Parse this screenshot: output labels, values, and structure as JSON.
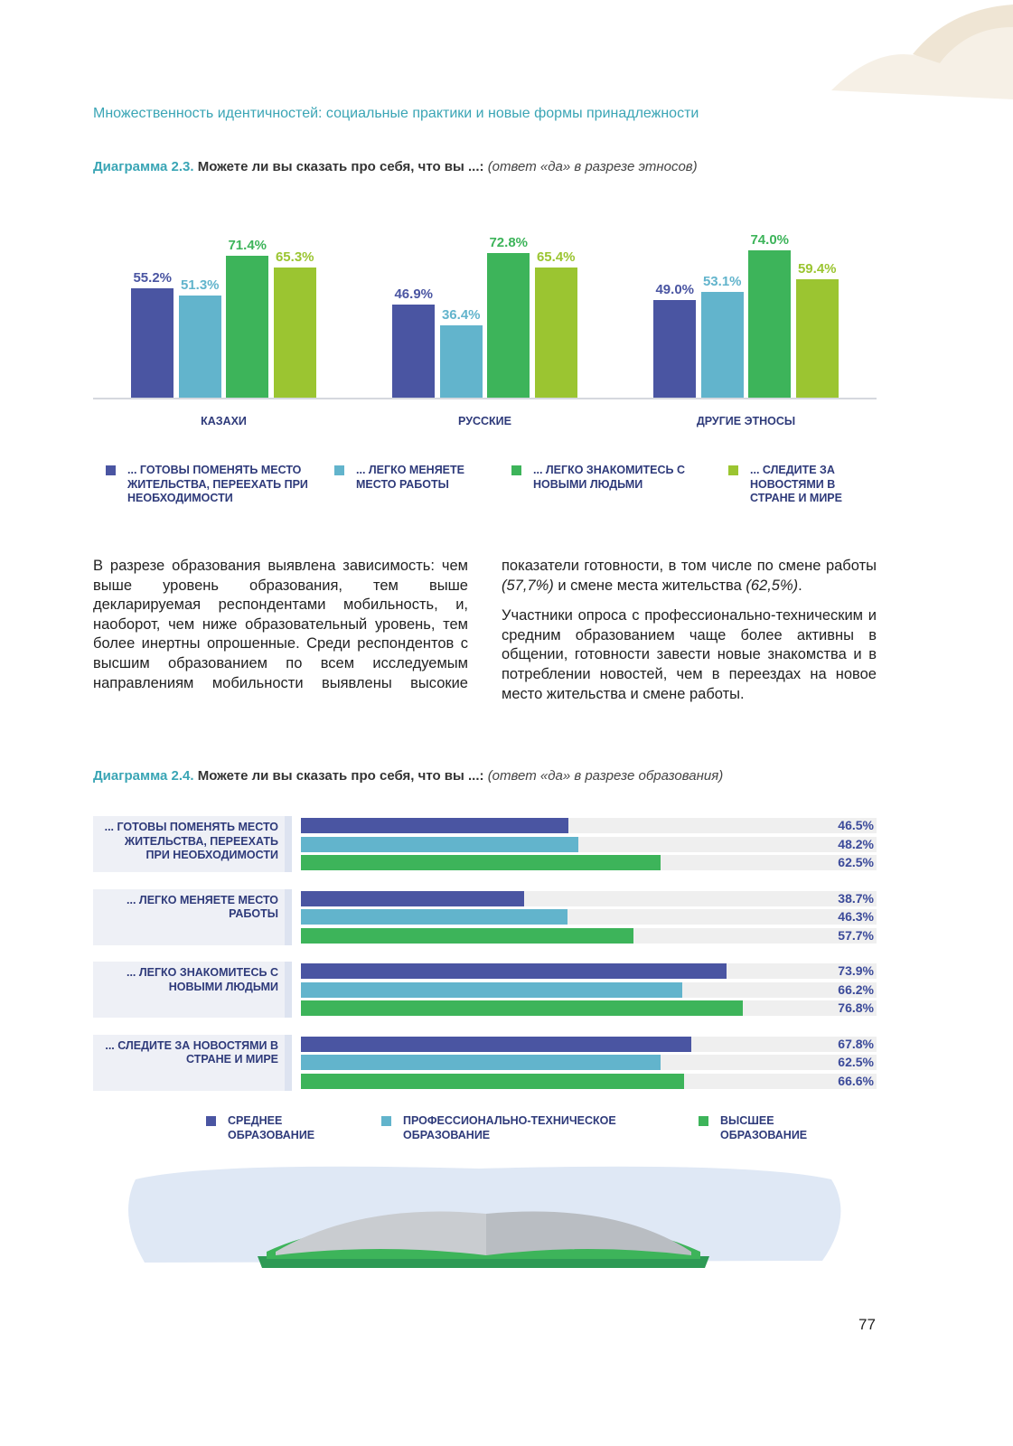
{
  "header": "Множественность идентичностей: социальные практики и новые формы принадлежности",
  "chart_data": [
    {
      "type": "bar",
      "title_label": "Диаграмма 2.3.",
      "title": "Можете ли вы сказать про себя, что вы ...:",
      "subtitle": "(ответ «да» в разрезе этносов)",
      "categories": [
        "КАЗАХИ",
        "РУССКИЕ",
        "ДРУГИЕ ЭТНОСЫ"
      ],
      "series": [
        {
          "name": "... ГОТОВЫ ПОМЕНЯТЬ МЕСТО ЖИТЕЛЬСТВА, ПЕРЕЕХАТЬ ПРИ НЕОБХОДИМОСТИ",
          "color": "#4a55a2",
          "values": [
            55.2,
            46.9,
            49.0
          ],
          "value_labels": [
            "55.2%",
            "46.9%",
            "49.0%"
          ]
        },
        {
          "name": "... ЛЕГКО МЕНЯЕТЕ МЕСТО РАБОТЫ",
          "color": "#62b4cc",
          "values": [
            51.3,
            36.4,
            53.1
          ],
          "value_labels": [
            "51.3%",
            "36.4%",
            "53.1%"
          ]
        },
        {
          "name": "... ЛЕГКО ЗНАКОМИТЕСЬ С НОВЫМИ ЛЮДЬМИ",
          "color": "#3db45a",
          "values": [
            71.4,
            72.8,
            74.0
          ],
          "value_labels": [
            "71.4%",
            "72.8%",
            "74.0%"
          ]
        },
        {
          "name": "... СЛЕДИТЕ ЗА НОВОСТЯМИ В СТРАНЕ И МИРЕ",
          "color": "#9bc531",
          "values": [
            65.3,
            65.4,
            59.4
          ],
          "value_labels": [
            "65.3%",
            "65.4%",
            "59.4%"
          ]
        }
      ]
    },
    {
      "type": "hbar",
      "title_label": "Диаграмма 2.4.",
      "title": "Можете ли вы сказать про себя, что вы ...:",
      "subtitle": "(ответ «да» в разрезе образования)",
      "categories": [
        "... ГОТОВЫ ПОМЕНЯТЬ МЕСТО ЖИТЕЛЬСТВА, ПЕРЕЕХАТЬ ПРИ НЕОБХОДИМОСТИ",
        "... ЛЕГКО МЕНЯЕТЕ МЕСТО РАБОТЫ",
        "... ЛЕГКО ЗНАКОМИТЕСЬ С НОВЫМИ ЛЮДЬМИ",
        "... СЛЕДИТЕ ЗА НОВОСТЯМИ В СТРАНЕ И МИРЕ"
      ],
      "series": [
        {
          "name": "СРЕДНЕЕ ОБРАЗОВАНИЕ",
          "color": "#4a55a2",
          "values": [
            46.5,
            38.7,
            73.9,
            67.8
          ],
          "value_labels": [
            "46.5%",
            "38.7%",
            "73.9%",
            "67.8%"
          ]
        },
        {
          "name": "ПРОФЕССИОНАЛЬНО-ТЕХНИЧЕСКОЕ ОБРАЗОВАНИЕ",
          "color": "#62b4cc",
          "values": [
            48.2,
            46.3,
            66.2,
            62.5
          ],
          "value_labels": [
            "48.2%",
            "46.3%",
            "66.2%",
            "62.5%"
          ]
        },
        {
          "name": "ВЫСШЕЕ ОБРАЗОВАНИЕ",
          "color": "#3db45a",
          "values": [
            62.5,
            57.7,
            76.8,
            66.6
          ],
          "value_labels": [
            "62.5%",
            "57.7%",
            "76.8%",
            "66.6%"
          ]
        }
      ]
    }
  ],
  "paragraphs": [
    [
      "В разрезе образования выявлена зависимость: чем выше уровень образования, тем выше декларируемая респондентами мобильность, и, наоборот, чем ниже образовательный уровень, тем более инертны опрошенные. Среди респондентов с высшим образованием по всем исследуемым направлениям мобильности выявлены высокие показатели готовности, в том числе по смене работы ",
      "(57,7%)",
      " и смене места жительства ",
      "(62,5%)",
      "."
    ],
    [
      "Участники опроса с профессионально-техническим и средним образованием чаще более активны в общении, готовности завести новые знакомства и в потреблении новостей, чем в переездах на новое место жительства и смене работы."
    ]
  ],
  "page_number": "77"
}
